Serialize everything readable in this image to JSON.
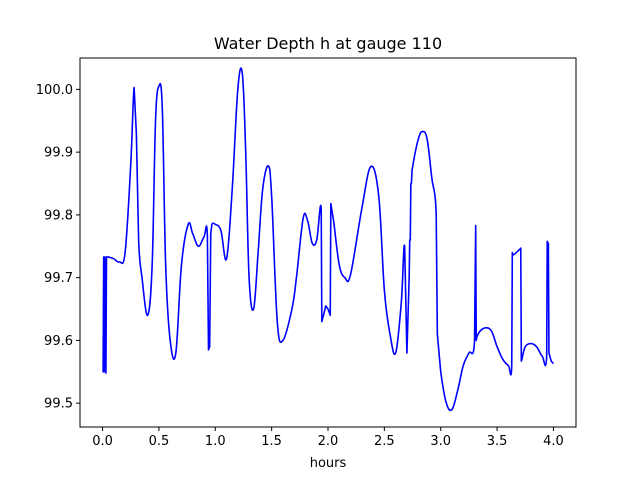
{
  "chart_data": {
    "type": "line",
    "title": "Water Depth h at gauge 110",
    "xlabel": "hours",
    "ylabel": "",
    "xlim": [
      -0.2,
      4.2
    ],
    "ylim": [
      99.462,
      100.05
    ],
    "xticks": [
      0.0,
      0.5,
      1.0,
      1.5,
      2.0,
      2.5,
      3.0,
      3.5,
      4.0
    ],
    "xtick_labels": [
      "0.0",
      "0.5",
      "1.0",
      "1.5",
      "2.0",
      "2.5",
      "3.0",
      "3.5",
      "4.0"
    ],
    "yticks": [
      99.5,
      99.6,
      99.7,
      99.8,
      99.9,
      100.0
    ],
    "ytick_labels": [
      "99.5",
      "99.6",
      "99.7",
      "99.8",
      "99.9",
      "100.0"
    ],
    "grid": false,
    "series": [
      {
        "color": "#0000ff",
        "x": [
          0.0,
          0.005,
          0.01,
          0.015,
          0.02,
          0.03,
          0.035,
          0.04,
          0.045,
          0.05,
          0.1,
          0.15,
          0.2,
          0.25,
          0.28,
          0.3,
          0.32,
          0.35,
          0.4,
          0.44,
          0.47,
          0.5,
          0.53,
          0.56,
          0.6,
          0.65,
          0.7,
          0.76,
          0.8,
          0.85,
          0.9,
          0.93,
          0.94,
          0.95,
          0.96,
          0.97,
          1.0,
          1.05,
          1.1,
          1.15,
          1.2,
          1.24,
          1.27,
          1.3,
          1.34,
          1.38,
          1.42,
          1.47,
          1.5,
          1.55,
          1.6,
          1.68,
          1.72,
          1.78,
          1.82,
          1.86,
          1.9,
          1.94,
          1.945,
          1.96,
          1.98,
          2.0,
          2.02,
          2.025,
          2.05,
          2.1,
          2.15,
          2.2,
          2.3,
          2.38,
          2.45,
          2.5,
          2.55,
          2.6,
          2.65,
          2.68,
          2.7,
          2.72,
          2.725,
          2.73,
          2.735,
          2.74,
          2.745,
          2.8,
          2.84,
          2.88,
          2.92,
          2.96,
          2.97,
          2.975,
          3.0,
          3.05,
          3.1,
          3.15,
          3.2,
          3.25,
          3.3,
          3.31,
          3.315,
          3.32,
          3.35,
          3.4,
          3.45,
          3.5,
          3.55,
          3.6,
          3.63,
          3.635,
          3.64,
          3.67,
          3.7,
          3.71,
          3.715,
          3.72,
          3.75,
          3.8,
          3.85,
          3.9,
          3.94,
          3.945,
          3.95,
          3.955,
          3.96,
          3.98,
          4.0
        ],
        "y": [
          99.55,
          99.55,
          99.733,
          99.55,
          99.733,
          99.548,
          99.733,
          99.733,
          99.733,
          99.733,
          99.73,
          99.725,
          99.74,
          99.88,
          100.003,
          99.93,
          99.76,
          99.7,
          99.64,
          99.72,
          99.95,
          100.005,
          99.97,
          99.72,
          99.6,
          99.58,
          99.72,
          99.785,
          99.77,
          99.75,
          99.765,
          99.768,
          99.585,
          99.59,
          99.77,
          99.785,
          99.785,
          99.775,
          99.73,
          99.84,
          100.0,
          100.025,
          99.9,
          99.7,
          99.65,
          99.74,
          99.84,
          99.878,
          99.83,
          99.63,
          99.6,
          99.65,
          99.7,
          99.795,
          99.79,
          99.755,
          99.76,
          99.81,
          99.63,
          99.64,
          99.655,
          99.65,
          99.64,
          99.818,
          99.79,
          99.72,
          99.7,
          99.705,
          99.81,
          99.877,
          99.83,
          99.68,
          99.61,
          99.58,
          99.66,
          99.75,
          99.58,
          99.7,
          99.76,
          99.76,
          99.85,
          99.85,
          99.87,
          99.92,
          99.933,
          99.92,
          99.86,
          99.8,
          99.61,
          99.6,
          99.55,
          99.5,
          99.49,
          99.52,
          99.56,
          99.58,
          99.6,
          99.783,
          99.6,
          99.605,
          99.615,
          99.62,
          99.615,
          99.59,
          99.57,
          99.56,
          99.56,
          99.74,
          99.736,
          99.74,
          99.745,
          99.747,
          99.567,
          99.57,
          99.59,
          99.595,
          99.59,
          99.575,
          99.575,
          99.758,
          99.755,
          99.755,
          99.58,
          99.567,
          99.563
        ]
      }
    ]
  }
}
